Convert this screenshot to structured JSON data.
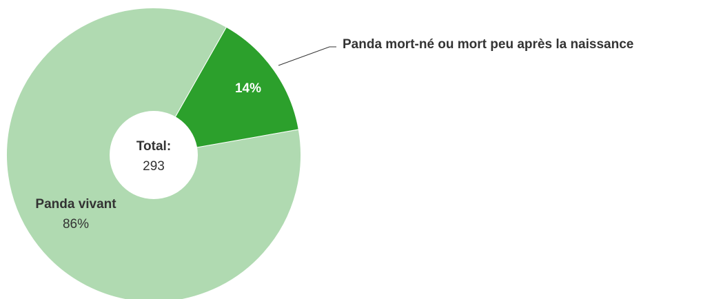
{
  "chart_data": {
    "type": "pie",
    "categories": [
      "Panda vivant",
      "Panda mort-né ou mort peu après la naissance"
    ],
    "values": [
      86,
      14
    ],
    "value_labels": [
      "86%",
      "14%"
    ],
    "colors": [
      "#b0dab1",
      "#2ca02c"
    ],
    "center_label": "Total:",
    "total": 293
  }
}
